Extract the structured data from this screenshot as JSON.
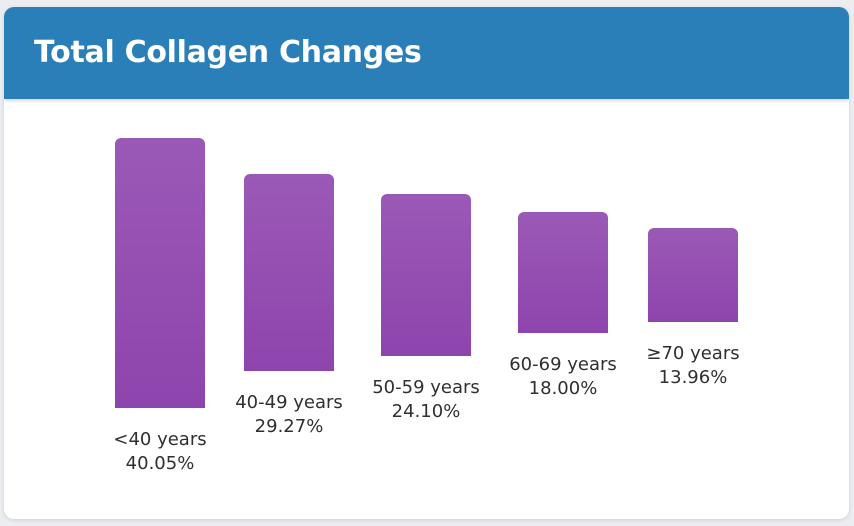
{
  "header": {
    "title": "Total Collagen Changes"
  },
  "colors": {
    "header_bg": "#2a7fb9",
    "bar_top": "#9b59b6",
    "bar_bottom": "#8e44ad"
  },
  "chart_data": {
    "type": "bar",
    "title": "Total Collagen Changes",
    "categories": [
      "<40 years",
      "40-49 years",
      "50-59 years",
      "60-69 years",
      "≥70 years"
    ],
    "values": [
      40.05,
      29.27,
      24.1,
      18.0,
      13.96
    ],
    "value_labels": [
      "40.05%",
      "29.27%",
      "24.10%",
      "18.00%",
      "13.96%"
    ],
    "unit": "%",
    "ylim": [
      0,
      40.05
    ],
    "grid": false,
    "legend": false
  }
}
